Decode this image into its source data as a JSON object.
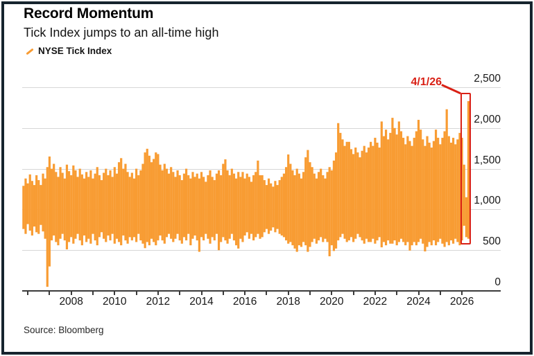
{
  "title": "Record Momentum",
  "subtitle": "Tick Index jumps to an all-time high",
  "legend": {
    "label": "NYSE Tick Index"
  },
  "annotation": {
    "label": "4/1/26"
  },
  "source": "Source: Bloomberg",
  "colors": {
    "series_orange": "#F89C33",
    "annotation_red": "#D92015",
    "frame_border": "#16242E",
    "gridline": "#D6D6D6",
    "axis": "#3A3A3A",
    "text": "#161616"
  },
  "chart_data": {
    "type": "bar",
    "title": "Record Momentum",
    "subtitle": "Tick Index jumps to an all-time high",
    "series_name": "NYSE Tick Index",
    "grid": "horizontal",
    "legend_position": "top-left",
    "x_unit": "decimal year",
    "x_start": 2005.8,
    "x_step": 0.1,
    "x_axis": {
      "range": [
        2005.5,
        2027.8
      ],
      "labeled_years": [
        2008,
        2010,
        2012,
        2014,
        2016,
        2018,
        2020,
        2022,
        2024,
        2026
      ],
      "minor_tick_years": [
        2006,
        2007,
        2008,
        2009,
        2010,
        2011,
        2012,
        2013,
        2014,
        2015,
        2016,
        2017,
        2018,
        2019,
        2020,
        2021,
        2022,
        2023,
        2024,
        2025,
        2026
      ]
    },
    "y_axis": {
      "side": "right",
      "range": [
        0,
        2500
      ],
      "ticks": [
        0,
        500,
        1000,
        1500,
        2000,
        2500
      ],
      "tick_labels": [
        "0",
        "500",
        "1,000",
        "1,500",
        "2,000",
        "2,500"
      ]
    },
    "highlight": {
      "label": "4/1/26",
      "x_range": [
        2025.93,
        2026.42
      ],
      "y_range": [
        570,
        2430
      ],
      "peak_value": 2330,
      "peak_date_label": "4/1/26"
    },
    "bars_hi": [
      1290,
      1380,
      1320,
      1430,
      1350,
      1300,
      1420,
      1360,
      1300,
      1440,
      1380,
      1520,
      1650,
      1500,
      1560,
      1460,
      1400,
      1520,
      1450,
      1380,
      1550,
      1470,
      1420,
      1540,
      1480,
      1400,
      1500,
      1430,
      1380,
      1460,
      1400,
      1480,
      1380,
      1440,
      1520,
      1420,
      1360,
      1450,
      1500,
      1420,
      1480,
      1400,
      1520,
      1440,
      1580,
      1630,
      1500,
      1560,
      1460,
      1400,
      1450,
      1380,
      1500,
      1420,
      1480,
      1560,
      1700,
      1745,
      1660,
      1580,
      1620,
      1700,
      1680,
      1550,
      1480,
      1560,
      1500,
      1440,
      1520,
      1460,
      1400,
      1480,
      1420,
      1360,
      1440,
      1500,
      1420,
      1380,
      1460,
      1400,
      1440,
      1380,
      1460,
      1400,
      1340,
      1420,
      1480,
      1400,
      1360,
      1440,
      1480,
      1420,
      1560,
      1615,
      1480,
      1420,
      1500,
      1440,
      1380,
      1460,
      1400,
      1460,
      1380,
      1440,
      1400,
      1340,
      1420,
      1460,
      1600,
      1420,
      1420,
      1360,
      1300,
      1380,
      1320,
      1280,
      1350,
      1300,
      1360,
      1400,
      1440,
      1520,
      1675,
      1560,
      1480,
      1420,
      1500,
      1440,
      1380,
      1460,
      1640,
      1730,
      1580,
      1520,
      1440,
      1380,
      1460,
      1500,
      1420,
      1380,
      1460,
      1520,
      1480,
      1600,
      1700,
      2060,
      1940,
      1860,
      1780,
      1830,
      1830,
      1740,
      1680,
      1760,
      1700,
      1640,
      1720,
      1780,
      1700,
      1760,
      1830,
      1780,
      1880,
      1820,
      1760,
      2080,
      1900,
      1980,
      1860,
      1940,
      2125,
      2000,
      1920,
      2080,
      1960,
      1880,
      1800,
      1900,
      1840,
      1780,
      1880,
      1960,
      2100,
      1980,
      1860,
      1780,
      1900,
      1820,
      1760,
      1840,
      1980,
      1880,
      1800,
      1880,
      1960,
      2230,
      1900,
      1820,
      1880,
      1800,
      1860,
      1940,
      1880,
      1550,
      1150,
      2330
    ],
    "bars_lo": [
      760,
      700,
      820,
      740,
      680,
      790,
      720,
      700,
      810,
      730,
      640,
      50,
      300,
      620,
      680,
      600,
      560,
      640,
      700,
      620,
      510,
      600,
      660,
      580,
      640,
      700,
      620,
      560,
      680,
      600,
      640,
      580,
      700,
      620,
      560,
      660,
      720,
      640,
      600,
      680,
      620,
      700,
      580,
      640,
      600,
      560,
      680,
      620,
      580,
      660,
      620,
      660,
      600,
      700,
      620,
      580,
      525,
      600,
      560,
      640,
      600,
      560,
      620,
      680,
      620,
      580,
      660,
      700,
      640,
      600,
      640,
      700,
      620,
      580,
      660,
      620,
      700,
      560,
      640,
      680,
      620,
      480,
      660,
      620,
      700,
      640,
      580,
      660,
      620,
      700,
      500,
      600,
      660,
      620,
      580,
      640,
      700,
      620,
      560,
      520,
      640,
      600,
      680,
      720,
      640,
      700,
      620,
      660,
      700,
      640,
      660,
      720,
      760,
      700,
      740,
      780,
      720,
      760,
      700,
      680,
      660,
      620,
      580,
      600,
      560,
      520,
      480,
      560,
      540,
      600,
      560,
      480,
      540,
      600,
      640,
      580,
      620,
      660,
      600,
      640,
      600,
      425,
      560,
      490,
      520,
      620,
      660,
      700,
      640,
      600,
      620,
      660,
      600,
      640,
      700,
      660,
      620,
      580,
      640,
      600,
      600,
      640,
      580,
      620,
      660,
      535,
      600,
      560,
      620,
      580,
      580,
      620,
      560,
      600,
      640,
      600,
      560,
      600,
      495,
      560,
      600,
      560,
      600,
      640,
      580,
      485,
      540,
      600,
      560,
      620,
      560,
      600,
      640,
      580,
      540,
      600,
      560,
      620,
      580,
      640,
      600,
      560,
      620,
      800,
      660,
      640
    ]
  }
}
